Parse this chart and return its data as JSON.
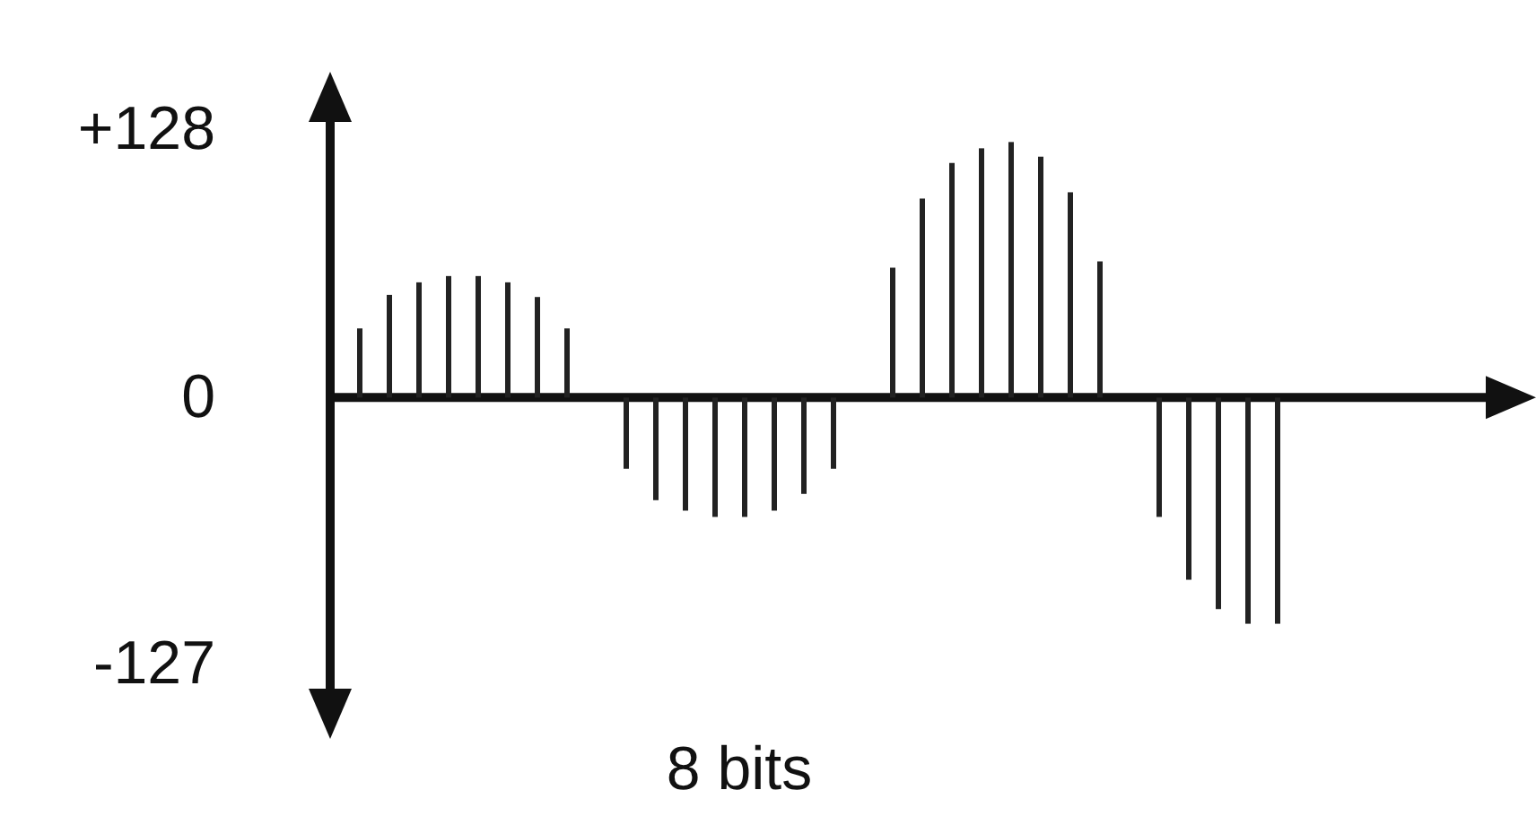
{
  "chart_data": {
    "type": "bar",
    "xlabel": "8 bits",
    "tick_labels": "y",
    "categories": [
      null,
      null,
      null,
      null,
      null,
      null,
      null,
      null,
      null,
      null,
      null,
      null,
      null,
      null,
      null,
      null,
      null,
      null,
      null,
      null,
      null,
      null,
      null,
      null,
      null,
      null,
      null,
      null,
      null,
      null,
      null,
      null,
      null,
      null,
      null,
      null,
      null,
      null,
      null
    ],
    "values": [
      33,
      49,
      55,
      58,
      58,
      55,
      48,
      33,
      null,
      -34,
      -49,
      -54,
      -57,
      -57,
      -54,
      -46,
      -34,
      null,
      62,
      95,
      112,
      119,
      122,
      115,
      98,
      65,
      null,
      -57,
      -87,
      -101,
      -108,
      -108,
      null,
      null,
      null,
      null,
      null,
      null,
      null
    ],
    "color": "#222222",
    "ylim": [
      -145,
      141
    ],
    "yticks": [
      {
        "value": 128,
        "label": "+128"
      },
      0,
      -127
    ]
  }
}
